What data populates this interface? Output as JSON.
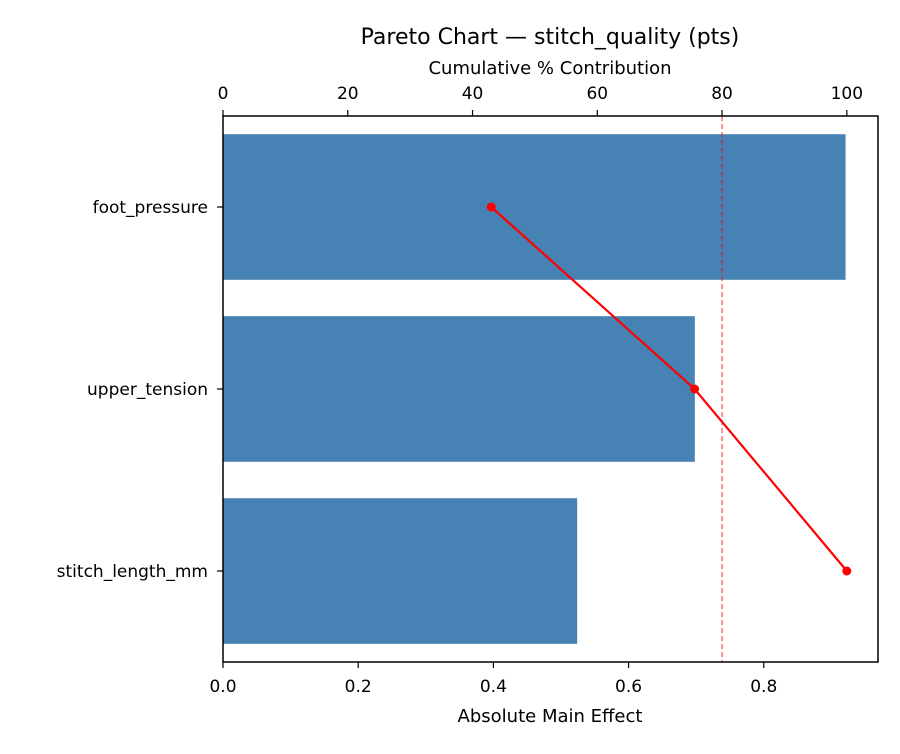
{
  "chart_data": {
    "type": "bar",
    "orientation": "horizontal",
    "title": "Pareto Chart — stitch_quality (pts)",
    "xlabel": "Absolute Main Effect",
    "ylabel": "",
    "secondary_xlabel": "Cumulative % Contribution",
    "categories": [
      "foot_pressure",
      "upper_tension",
      "stitch_length_mm"
    ],
    "values": [
      0.921,
      0.698,
      0.524
    ],
    "series": [
      {
        "name": "Absolute Main Effect",
        "type": "bar",
        "color": "#4682b4",
        "values": [
          0.921,
          0.698,
          0.524
        ]
      },
      {
        "name": "Cumulative % Contribution",
        "type": "line",
        "color": "#ff0000",
        "values": [
          43.0,
          75.6,
          100.0
        ]
      }
    ],
    "xlim": [
      0,
      0.969
    ],
    "secondary_xlim": [
      0,
      105
    ],
    "xticks": [
      "0.0",
      "0.2",
      "0.4",
      "0.6",
      "0.8"
    ],
    "secondary_xticks": [
      "0",
      "20",
      "40",
      "60",
      "80",
      "100"
    ],
    "reference_line": {
      "axis": "secondary_x",
      "value": 80,
      "style": "dashed",
      "color": "#ff0000"
    },
    "grid": false,
    "legend": null
  }
}
